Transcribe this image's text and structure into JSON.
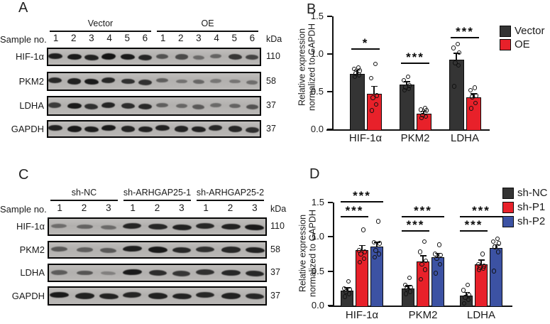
{
  "blots": {
    "A": {
      "label": "A",
      "sample_label": "Sample no.",
      "kda_label": "kDa",
      "groups": [
        {
          "name": "Vector",
          "lanes": [
            "1",
            "2",
            "3",
            "4",
            "5",
            "6"
          ]
        },
        {
          "name": "OE",
          "lanes": [
            "1",
            "2",
            "3",
            "4",
            "5",
            "6"
          ]
        }
      ],
      "rows": [
        {
          "protein": "HIF-1α",
          "kda": "110",
          "bands": [
            0.92,
            0.95,
            0.9,
            1.0,
            0.95,
            0.88,
            0.55,
            0.6,
            0.38,
            0.42,
            0.75,
            0.65
          ]
        },
        {
          "protein": "PKM2",
          "kda": "58",
          "bands": [
            0.85,
            0.9,
            0.95,
            0.85,
            0.8,
            0.78,
            0.45,
            0.32,
            0.4,
            0.28,
            0.3,
            0.35
          ]
        },
        {
          "protein": "LDHA",
          "kda": "37",
          "bands": [
            0.72,
            0.95,
            0.8,
            0.88,
            0.82,
            0.85,
            0.45,
            0.4,
            0.5,
            0.38,
            0.42,
            0.55
          ]
        },
        {
          "protein": "GAPDH",
          "kda": "37",
          "bands": [
            0.9,
            0.95,
            0.92,
            0.95,
            0.88,
            0.9,
            0.9,
            0.88,
            0.9,
            0.85,
            0.85,
            0.8
          ]
        }
      ]
    },
    "C": {
      "label": "C",
      "sample_label": "Sample no.",
      "kda_label": "kDa",
      "groups": [
        {
          "name": "sh-NC",
          "lanes": [
            "1",
            "2",
            "3"
          ]
        },
        {
          "name": "sh-ARHGAP25-1",
          "lanes": [
            "1",
            "2",
            "3"
          ]
        },
        {
          "name": "sh-ARHGAP25-2",
          "lanes": [
            "1",
            "2",
            "3"
          ]
        }
      ],
      "rows": [
        {
          "protein": "HIF-1α",
          "kda": "110",
          "bands": [
            0.35,
            0.42,
            0.38,
            0.88,
            0.85,
            0.9,
            0.85,
            0.9,
            0.95
          ]
        },
        {
          "protein": "PKM2",
          "kda": "58",
          "bands": [
            0.5,
            0.45,
            0.5,
            0.92,
            0.95,
            0.85,
            0.8,
            0.85,
            0.9
          ]
        },
        {
          "protein": "LDHA",
          "kda": "37",
          "bands": [
            0.48,
            0.52,
            0.22,
            0.95,
            0.82,
            0.75,
            0.8,
            0.85,
            0.85
          ]
        },
        {
          "protein": "GAPDH",
          "kda": "37",
          "bands": [
            0.95,
            0.9,
            0.9,
            0.88,
            0.9,
            0.9,
            0.85,
            0.9,
            0.85
          ]
        }
      ]
    }
  },
  "chart_data": [
    {
      "panel_label": "B",
      "type": "bar",
      "title": "",
      "xlabel": "",
      "ylabel": "Relative expression normalized to GAPDH",
      "ylabel_lines": [
        "Relative expression",
        "normalized to GAPDH"
      ],
      "categories": [
        "HIF-1α",
        "PKM2",
        "LDHA"
      ],
      "ylim": [
        0,
        1.5
      ],
      "yticks": [
        0,
        0.5,
        1.0,
        1.5
      ],
      "ytick_labels": [
        "0.0",
        "0.5",
        "1.0",
        "1.5"
      ],
      "grid": false,
      "legend_position": "top-right",
      "error_type": "SEM",
      "series": [
        {
          "name": "Vector",
          "color": "#343434",
          "values": [
            0.74,
            0.59,
            0.92
          ],
          "errors": [
            0.05,
            0.04,
            0.09
          ],
          "points": [
            [
              0.7,
              0.72,
              0.74,
              0.78,
              0.8,
              0.82
            ],
            [
              0.52,
              0.54,
              0.56,
              0.58,
              0.65,
              0.7
            ],
            [
              0.57,
              0.85,
              0.88,
              1.02,
              1.08,
              1.13
            ]
          ]
        },
        {
          "name": "OE",
          "color": "#e8212a",
          "values": [
            0.47,
            0.21,
            0.42
          ],
          "errors": [
            0.1,
            0.03,
            0.05
          ],
          "points": [
            [
              0.25,
              0.33,
              0.42,
              0.45,
              0.68,
              0.87
            ],
            [
              0.15,
              0.17,
              0.19,
              0.25,
              0.26,
              0.28
            ],
            [
              0.28,
              0.35,
              0.43,
              0.45,
              0.52,
              0.55
            ]
          ]
        }
      ],
      "significance": [
        {
          "category": 0,
          "from": 0,
          "to": 1,
          "label": "*",
          "y": 1.08
        },
        {
          "category": 1,
          "from": 0,
          "to": 1,
          "label": "***",
          "y": 0.89
        },
        {
          "category": 2,
          "from": 0,
          "to": 1,
          "label": "***",
          "y": 1.23
        }
      ]
    },
    {
      "panel_label": "D",
      "type": "bar",
      "title": "",
      "xlabel": "",
      "ylabel": "Relative expression normalized to GAPDH",
      "ylabel_lines": [
        "Relative expression",
        "normalized to GAPDH"
      ],
      "categories": [
        "HIF-1α",
        "PKM2",
        "LDHA"
      ],
      "ylim": [
        0,
        1.5
      ],
      "yticks": [
        0,
        0.5,
        1.0,
        1.5
      ],
      "ytick_labels": [
        "0.0",
        "0.5",
        "1.0",
        "1.5"
      ],
      "grid": false,
      "legend_position": "top-right",
      "error_type": "SEM",
      "series": [
        {
          "name": "sh-NC",
          "color": "#343434",
          "values": [
            0.22,
            0.25,
            0.14
          ],
          "errors": [
            0.04,
            0.04,
            0.05
          ],
          "points": [
            [
              0.13,
              0.17,
              0.2,
              0.23,
              0.25,
              0.35
            ],
            [
              0.17,
              0.2,
              0.24,
              0.27,
              0.3,
              0.4
            ],
            [
              0.03,
              0.08,
              0.12,
              0.15,
              0.22,
              0.3
            ]
          ]
        },
        {
          "name": "sh-P1",
          "color": "#e8212a",
          "values": [
            0.8,
            0.64,
            0.6
          ],
          "errors": [
            0.07,
            0.08,
            0.06
          ],
          "points": [
            [
              0.63,
              0.68,
              0.75,
              0.78,
              0.8,
              1.1
            ],
            [
              0.38,
              0.52,
              0.6,
              0.65,
              0.78,
              0.93
            ],
            [
              0.52,
              0.54,
              0.55,
              0.57,
              0.6,
              0.75
            ]
          ]
        },
        {
          "name": "sh-P2",
          "color": "#3c52a3",
          "values": [
            0.86,
            0.7,
            0.83
          ],
          "errors": [
            0.06,
            0.06,
            0.05
          ],
          "points": [
            [
              0.7,
              0.75,
              0.8,
              0.9,
              0.92,
              1.22
            ],
            [
              0.47,
              0.6,
              0.68,
              0.73,
              0.75,
              0.88
            ],
            [
              0.5,
              0.78,
              0.85,
              0.9,
              0.93,
              0.97
            ]
          ]
        }
      ],
      "significance": [
        {
          "category": 0,
          "from": 0,
          "to": 1,
          "label": "***",
          "y": 1.3
        },
        {
          "category": 0,
          "from": 0,
          "to": 2,
          "label": "***",
          "y": 1.52
        },
        {
          "category": 1,
          "from": 0,
          "to": 1,
          "label": "***",
          "y": 1.09
        },
        {
          "category": 1,
          "from": 0,
          "to": 2,
          "label": "***",
          "y": 1.3
        },
        {
          "category": 2,
          "from": 0,
          "to": 1,
          "label": "***",
          "y": 1.09
        },
        {
          "category": 2,
          "from": 0,
          "to": 2,
          "label": "***",
          "y": 1.3
        }
      ]
    }
  ]
}
